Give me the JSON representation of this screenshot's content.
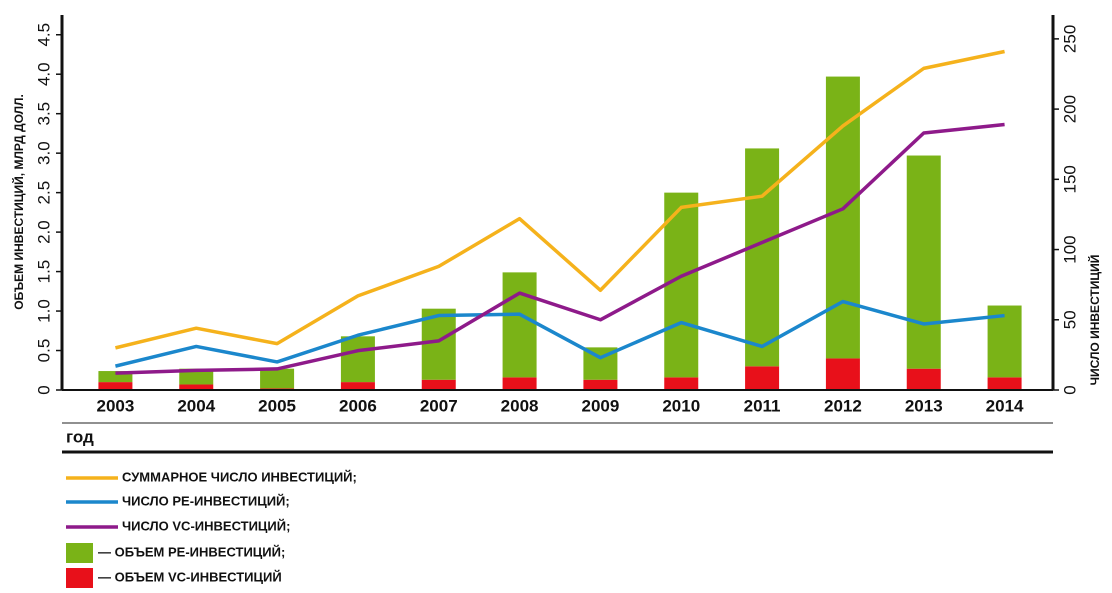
{
  "chart_data": {
    "type": "combo",
    "xlabel": "год",
    "ylabel": "ОБЪЕМ ИНВЕСТИЦИЙ, МЛРД ДОЛЛ.",
    "y2label": "ЧИСЛО ИНВЕСТИЦИЙ",
    "categories": [
      "2003",
      "2004",
      "2005",
      "2006",
      "2007",
      "2008",
      "2009",
      "2010",
      "2011",
      "2012",
      "2013",
      "2014"
    ],
    "ylim": [
      0,
      4.75
    ],
    "yticks": [
      0,
      0.5,
      {
        "value": 1,
        "label": "1.0"
      },
      1.5,
      {
        "value": 2,
        "label": "2.0"
      },
      2.5,
      {
        "value": 3,
        "label": "3.0"
      },
      3.5,
      {
        "value": 4,
        "label": "4.0"
      },
      4.5
    ],
    "y2lim": [
      0,
      267
    ],
    "y2ticks": [
      0,
      50,
      100,
      150,
      200,
      250
    ],
    "series": [
      {
        "name": "СУММАРНОЕ ЧИСЛО ИНВЕСТИЦИЙ;",
        "type": "line",
        "axis": "y2",
        "color": "#f5b21c",
        "values": [
          30,
          44,
          33,
          67,
          88,
          122,
          71,
          130,
          138,
          188,
          229,
          241
        ]
      },
      {
        "name": "ЧИСЛО PE-ИНВЕСТИЦИЙ;",
        "type": "line",
        "axis": "y2",
        "color": "#1b87cc",
        "values": [
          17,
          31,
          20,
          39,
          53,
          54,
          23,
          48,
          31,
          63,
          47,
          53
        ]
      },
      {
        "name": "ЧИСЛО VC-ИНВЕСТИЦИЙ;",
        "type": "line",
        "axis": "y2",
        "color": "#8e1a8a",
        "values": [
          12,
          14,
          15,
          28,
          35,
          69,
          50,
          81,
          105,
          129,
          183,
          189
        ]
      },
      {
        "name": "— ОБЪЕМ PE-ИНВЕСТИЦИЙ;",
        "type": "bar",
        "axis": "y",
        "color": "#7ab317",
        "values": [
          0.14,
          0.2,
          0.25,
          0.58,
          0.9,
          1.33,
          0.41,
          2.34,
          2.76,
          3.57,
          2.7,
          0.91
        ]
      },
      {
        "name": "— ОБЪЕМ VC-ИНВЕСТИЦИЙ",
        "type": "bar",
        "axis": "y",
        "color": "#e8101a",
        "values": [
          0.1,
          0.07,
          0.02,
          0.1,
          0.13,
          0.16,
          0.13,
          0.16,
          0.3,
          0.4,
          0.27,
          0.16
        ]
      }
    ]
  }
}
